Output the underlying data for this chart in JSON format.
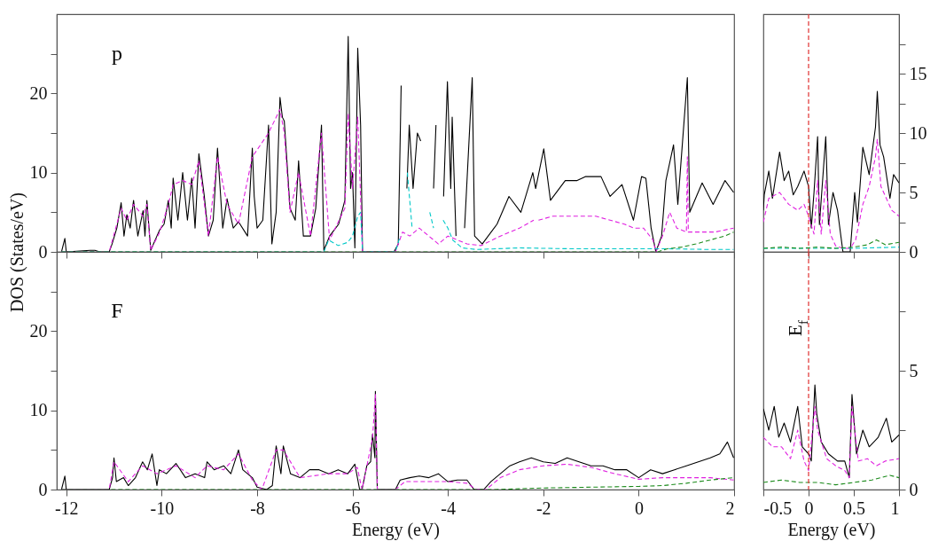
{
  "chart_data": [
    {
      "type": "line",
      "ylabel": "DOS (States/eV)",
      "annotations": [
        "p"
      ],
      "tick_labels": "y",
      "xlim": [
        -12.2,
        2
      ],
      "xticks": [
        -12,
        -10,
        -8,
        -6,
        -4,
        -2,
        0,
        2
      ],
      "ylim": [
        0,
        30
      ],
      "yticks": [
        0,
        {
          "value": 5,
          "label": null
        },
        10,
        {
          "value": 15,
          "label": null
        },
        20,
        {
          "value": 25,
          "label": null
        }
      ],
      "series": [
        {
          "color": "#000000",
          "line_style": "solid",
          "x": [
            -12.1,
            -12.03,
            -12.0,
            -11.5,
            -11.4,
            -11.3,
            -11.1,
            -11.04,
            -10.94,
            -10.85,
            -10.79,
            -10.73,
            -10.66,
            -10.59,
            -10.5,
            -10.39,
            -10.35,
            -10.31,
            -10.23,
            -10.1,
            -10.04,
            -9.95,
            -9.86,
            -9.8,
            -9.76,
            -9.66,
            -9.56,
            -9.46,
            -9.37,
            -9.3,
            -9.22,
            -9.11,
            -9.02,
            -8.92,
            -8.83,
            -8.72,
            -8.63,
            -8.5,
            -8.39,
            -8.2,
            -8.1,
            -8.06,
            -8.0,
            -7.88,
            -7.76,
            -7.69,
            -7.6,
            -7.52,
            -7.47,
            -7.43,
            -7.31,
            -7.2,
            -7.13,
            -7.03,
            -6.88,
            -6.77,
            -6.65,
            -6.6,
            -6.48,
            -6.29,
            -6.16,
            -6.09,
            -6.04,
            -6.0,
            -5.95,
            -5.89,
            -5.83,
            -5.79,
            -5.5,
            -5.13,
            -5.04,
            -4.98,
            -4.9,
            -4.86,
            -4.81,
            -4.73,
            -4.64,
            -4.57,
            -4.49,
            -4.4,
            -4.3,
            -4.25,
            -4.19,
            -4.09,
            -4.01,
            -3.94,
            -3.91,
            -3.83,
            -3.7,
            -3.65,
            -3.49,
            -3.44,
            -3.28,
            -2.97,
            -2.72,
            -2.47,
            -2.22,
            -2.16,
            -1.99,
            -1.85,
            -1.54,
            -1.29,
            -1.12,
            -0.79,
            -0.6,
            -0.35,
            -0.11,
            0.06,
            0.15,
            0.26,
            0.36,
            0.48,
            0.57,
            0.73,
            0.82,
            1.02,
            1.07,
            1.33,
            1.56,
            1.81,
            1.99
          ],
          "values": [
            0,
            1.7,
            0,
            0.2,
            0.2,
            0,
            0,
            1,
            3,
            6.2,
            2,
            4.7,
            3,
            6.5,
            2,
            5.2,
            2,
            6.5,
            0.2,
            2,
            2.8,
            3.5,
            6.5,
            3,
            9.3,
            4,
            10,
            4,
            9.3,
            3,
            12.4,
            7.2,
            2,
            4,
            13.1,
            3,
            6.7,
            3,
            3.8,
            2,
            13.1,
            7,
            3,
            4,
            16,
            1,
            5,
            19.5,
            17,
            16.5,
            5.5,
            4,
            11.5,
            2,
            2,
            5.5,
            16,
            0.2,
            2,
            3.5,
            6.5,
            27.2,
            8,
            10,
            0.5,
            25.7,
            16,
            0,
            0,
            0,
            1,
            21,
            null,
            8,
            16,
            8,
            15,
            14,
            null,
            null,
            8,
            16,
            null,
            7,
            21.5,
            8,
            17,
            2,
            null,
            3,
            22,
            2,
            1,
            3.5,
            7,
            5,
            10,
            8,
            13,
            6.5,
            9,
            9,
            9.5,
            9.5,
            7,
            8.5,
            4,
            9.5,
            9.3,
            3,
            0,
            2,
            9,
            13.5,
            6,
            22,
            5,
            8.7,
            6,
            9,
            7.5
          ]
        },
        {
          "color": "#e020e0",
          "line_style": "dashed",
          "x": [
            -12.1,
            -11.1,
            -10.85,
            -10.73,
            -10.59,
            -10.39,
            -10.31,
            -10.23,
            -10.04,
            -9.86,
            -9.76,
            -9.56,
            -9.37,
            -9.22,
            -9.02,
            -8.83,
            -8.63,
            -8.39,
            -8.1,
            -7.76,
            -7.52,
            -7.43,
            -7.31,
            -7.13,
            -6.88,
            -6.65,
            -6.48,
            -6.16,
            -6.09,
            -6.0,
            -5.89,
            -5.79,
            -5.5,
            -5.1,
            -4.95,
            -4.8,
            -4.6,
            -4.4,
            -4.2,
            -4.0,
            -3.8,
            -3.6,
            -3.3,
            -2.9,
            -2.5,
            -2.2,
            -2.16,
            -2.1,
            -1.8,
            -1.5,
            -1.2,
            -0.9,
            -0.6,
            -0.3,
            -0.1,
            0.1,
            0.3,
            0.36,
            0.5,
            0.65,
            0.8,
            1.0,
            1.02,
            1.04,
            1.3,
            1.6,
            1.99
          ],
          "values": [
            0,
            0,
            5.5,
            4,
            6,
            4.5,
            6,
            0.2,
            2.5,
            6,
            8.5,
            9,
            8.5,
            11.5,
            2,
            12,
            6,
            3.5,
            12,
            15,
            18,
            15,
            5,
            10,
            2,
            15,
            1.5,
            5.5,
            17.5,
            8,
            17,
            0,
            0,
            0,
            2.5,
            2,
            3,
            2,
            1,
            2,
            1.5,
            1,
            0.8,
            2,
            3,
            4,
            null,
            4,
            4.5,
            4.5,
            4.5,
            4.5,
            4,
            3.5,
            3,
            3,
            1.5,
            0,
            2,
            5,
            3,
            2.5,
            12,
            2.5,
            2.5,
            2.5,
            3
          ]
        },
        {
          "color": "#00c8c8",
          "line_style": "dashed",
          "x": [
            -12.1,
            -6.6,
            -6.5,
            -6.3,
            -6.1,
            -6.0,
            -5.89,
            -5.83,
            -5.79,
            -5.5,
            -5.1,
            -5.0,
            -4.9,
            -4.85,
            -4.75,
            -4.6,
            -4.52,
            -4.45,
            -4.38,
            -4.3,
            -4.19,
            -4.1,
            -4.0,
            -3.9,
            -3.7,
            -3.4,
            -2.5,
            -1.5,
            -0.5,
            0.5,
            1.5,
            1.99
          ],
          "values": [
            0,
            0,
            1.5,
            0.8,
            1.2,
            2,
            4.5,
            5,
            0,
            0,
            0,
            2,
            null,
            10,
            3,
            null,
            null,
            null,
            5,
            3,
            null,
            4,
            3,
            1.5,
            0.5,
            0.3,
            0.5,
            0.4,
            0.4,
            0.4,
            0.3,
            0.3
          ]
        },
        {
          "color": "#1a8a1a",
          "line_style": "dashed",
          "x": [
            -12.1,
            0.4,
            0.6,
            0.9,
            1.2,
            1.5,
            1.8,
            1.99
          ],
          "values": [
            0,
            0,
            0.4,
            0.6,
            1,
            1.5,
            2,
            2.5
          ]
        }
      ]
    },
    {
      "type": "line",
      "tick_labels": "y",
      "xlim": [
        -0.5,
        1
      ],
      "xticks": [
        -0.5,
        0,
        0.5,
        1
      ],
      "y2lim": [
        0,
        20
      ],
      "y2ticks": [
        0,
        {
          "value": 2.5,
          "label": null
        },
        5,
        {
          "value": 7.5,
          "label": null
        },
        10,
        {
          "value": 12.5,
          "label": null
        },
        15,
        {
          "value": 17.5,
          "label": null
        }
      ],
      "ref_lines": [
        {
          "axis": "x",
          "value": 0,
          "color": "#e03030",
          "line_style": "dashed"
        }
      ],
      "series": [
        {
          "axis": "y2",
          "color": "#000000",
          "line_style": "solid",
          "x": [
            -0.5,
            -0.49,
            -0.44,
            -0.4,
            -0.32,
            -0.27,
            -0.22,
            -0.17,
            -0.12,
            -0.05,
            0,
            0.03,
            0.06,
            0.1,
            0.12,
            0.19,
            0.22,
            0.27,
            0.32,
            0.38,
            0.46,
            0.51,
            0.54,
            0.6,
            0.67,
            0.74,
            0.76,
            0.79,
            0.83,
            0.9,
            0.94,
            1.0
          ],
          "values": [
            3.5,
            4.8,
            6.8,
            4.5,
            8.4,
            6,
            6.8,
            4.8,
            5.5,
            6.8,
            5.5,
            2,
            5,
            9.7,
            2.3,
            9.7,
            2.3,
            5,
            3.5,
            0,
            0,
            5,
            2.5,
            8.8,
            6.5,
            10.5,
            13.5,
            9,
            8,
            4.5,
            6.5,
            5.8
          ]
        },
        {
          "axis": "y2",
          "color": "#e020e0",
          "line_style": "dashed",
          "x": [
            -0.5,
            -0.44,
            -0.32,
            -0.22,
            -0.12,
            -0.05,
            0,
            0.06,
            0.1,
            0.14,
            0.19,
            0.24,
            0.3,
            0.38,
            0.46,
            0.52,
            0.6,
            0.67,
            0.74,
            0.76,
            0.8,
            0.86,
            0.92,
            1.0
          ],
          "values": [
            2.5,
            4.5,
            5,
            4,
            3.5,
            4,
            3,
            1.5,
            6,
            1.5,
            6,
            1.5,
            0.5,
            0.3,
            0.3,
            1,
            4,
            5.5,
            8,
            9.5,
            5.5,
            4.5,
            3.5,
            3
          ]
        },
        {
          "axis": "y2",
          "color": "#00c8c8",
          "line_style": "dashed",
          "x": [
            -0.5,
            0,
            0.5,
            1.0
          ],
          "values": [
            0.3,
            0.3,
            0.3,
            0.4
          ]
        },
        {
          "axis": "y2",
          "color": "#1a8a1a",
          "line_style": "dashed",
          "x": [
            -0.5,
            -0.3,
            -0.1,
            0.1,
            0.3,
            0.5,
            0.65,
            0.75,
            0.85,
            1.0
          ],
          "values": [
            0.3,
            0.4,
            0.3,
            0.4,
            0.3,
            0.4,
            0.6,
            1,
            0.6,
            0.8
          ]
        }
      ]
    },
    {
      "type": "line",
      "xlabel": "Energy (eV)",
      "annotations": [
        "F"
      ],
      "xlim": [
        -12.2,
        2
      ],
      "xticks": [
        -12,
        -10,
        -8,
        -6,
        -4,
        -2,
        0,
        2
      ],
      "ylim": [
        0,
        30
      ],
      "yticks": [
        0,
        {
          "value": 5,
          "label": null
        },
        10,
        {
          "value": 15,
          "label": null
        },
        20,
        {
          "value": 25,
          "label": null
        }
      ],
      "series": [
        {
          "color": "#000000",
          "line_style": "solid",
          "x": [
            -12.1,
            -12.03,
            -12.0,
            -11.1,
            -11.03,
            -11.0,
            -10.95,
            -10.8,
            -10.7,
            -10.55,
            -10.4,
            -10.3,
            -10.2,
            -10.1,
            -10.05,
            -9.9,
            -9.7,
            -9.5,
            -9.3,
            -9.1,
            -9.05,
            -8.9,
            -8.7,
            -8.55,
            -8.39,
            -8.3,
            -8.1,
            -8.0,
            -7.8,
            -7.68,
            -7.6,
            -7.5,
            -7.45,
            -7.3,
            -7.1,
            -6.9,
            -6.7,
            -6.5,
            -6.3,
            -6.1,
            -5.95,
            -5.85,
            -5.8,
            -5.7,
            -5.62,
            -5.58,
            -5.53,
            -5.52,
            -5.48,
            -5.1,
            -5.0,
            -4.8,
            -4.6,
            -4.4,
            -4.2,
            -4.0,
            -3.8,
            -3.6,
            -3.45,
            -3.25,
            -3.1,
            -2.9,
            -2.7,
            -2.5,
            -2.25,
            -2.0,
            -1.75,
            -1.5,
            -1.25,
            -1.0,
            -0.75,
            -0.5,
            -0.25,
            0,
            0.25,
            0.5,
            0.75,
            1.0,
            1.25,
            1.5,
            1.7,
            1.86,
            1.99
          ],
          "values": [
            0,
            1.7,
            0,
            0,
            1.5,
            4,
            1,
            1.5,
            0.5,
            1.5,
            3.5,
            2.5,
            4.5,
            0.5,
            2.5,
            2,
            3.3,
            1.5,
            2,
            1.5,
            3.5,
            2.5,
            3,
            2,
            5,
            2.5,
            1.5,
            0.3,
            0,
            0.5,
            5.5,
            2,
            5.5,
            2,
            1.5,
            2.5,
            2.5,
            2,
            2.5,
            2,
            3.2,
            0,
            0,
            3,
            3.5,
            7,
            4,
            12.4,
            0,
            0,
            1.2,
            1.5,
            1.7,
            1.5,
            2,
            1,
            1.2,
            1.2,
            0,
            0,
            1,
            2,
            3,
            3.5,
            4,
            3.5,
            3.3,
            4,
            3.5,
            3,
            3,
            2.5,
            2.5,
            1.5,
            2.5,
            2,
            2.5,
            3,
            3.5,
            4,
            4.5,
            6,
            4
          ]
        },
        {
          "color": "#e020e0",
          "line_style": "dashed",
          "x": [
            -12.1,
            -11.1,
            -11.0,
            -10.7,
            -10.4,
            -10.1,
            -9.7,
            -9.3,
            -9.05,
            -8.7,
            -8.39,
            -8.1,
            -7.9,
            -7.6,
            -7.45,
            -7.1,
            -6.5,
            -6.1,
            -5.9,
            -5.8,
            -5.58,
            -5.52,
            -5.48,
            -5.1,
            -4.9,
            -4.5,
            -4.0,
            -3.6,
            -3.4,
            -3.2,
            -2.9,
            -2.5,
            -2.0,
            -1.5,
            -1.0,
            -0.5,
            0,
            0.5,
            1.0,
            1.5,
            1.99
          ],
          "values": [
            0,
            0,
            3.5,
            1,
            3,
            2,
            3,
            1.5,
            3,
            2.5,
            4.5,
            1.2,
            0,
            5,
            5,
            1.5,
            2,
            2,
            2.8,
            0,
            6.5,
            12,
            0,
            0,
            1,
            1,
            1,
            0.8,
            0,
            0,
            1.5,
            2.5,
            3,
            3.2,
            2.8,
            2,
            1.3,
            1.5,
            1.5,
            1.5,
            1.2
          ]
        },
        {
          "color": "#1a8a1a",
          "line_style": "dashed",
          "x": [
            -12.1,
            -3.0,
            -2.0,
            -1.0,
            0,
            0.5,
            1.0,
            1.5,
            1.99
          ],
          "values": [
            0,
            0,
            0.2,
            0.3,
            0.4,
            0.5,
            0.8,
            1.2,
            1.5
          ]
        }
      ]
    },
    {
      "type": "line",
      "xlabel": "Energy (eV)",
      "xlim": [
        -0.5,
        1
      ],
      "xticks": [
        -0.5,
        0,
        0.5,
        1
      ],
      "y2lim": [
        0,
        10
      ],
      "y2ticks": [
        0,
        {
          "value": 2.5,
          "label": null
        },
        5,
        {
          "value": 7.5,
          "label": null
        }
      ],
      "ref_lines": [
        {
          "axis": "x",
          "value": 0,
          "color": "#e03030",
          "line_style": "dashed",
          "label": "E$_{f}$"
        }
      ],
      "series": [
        {
          "axis": "y2",
          "color": "#000000",
          "line_style": "solid",
          "x": [
            -0.5,
            -0.44,
            -0.38,
            -0.33,
            -0.27,
            -0.2,
            -0.12,
            -0.07,
            0,
            0.03,
            0.07,
            0.09,
            0.14,
            0.22,
            0.32,
            0.4,
            0.45,
            0.48,
            0.53,
            0.6,
            0.67,
            0.77,
            0.86,
            0.92,
            1.0
          ],
          "values": [
            3.4,
            2.5,
            3.5,
            2.2,
            2.8,
            2,
            3.5,
            1.8,
            1.5,
            1.2,
            4.4,
            3.2,
            2,
            1.5,
            1.2,
            1.2,
            0.5,
            4,
            1.5,
            2.5,
            1.8,
            2.2,
            3,
            2,
            2.3
          ]
        },
        {
          "axis": "y2",
          "color": "#e020e0",
          "line_style": "dashed",
          "x": [
            -0.5,
            -0.4,
            -0.3,
            -0.2,
            -0.12,
            -0.05,
            0,
            0.07,
            0.1,
            0.2,
            0.3,
            0.4,
            0.45,
            0.48,
            0.55,
            0.65,
            0.75,
            0.85,
            1.0
          ],
          "values": [
            2.2,
            1.8,
            1.8,
            1.3,
            2.5,
            1.2,
            0.8,
            3.5,
            2.5,
            1.3,
            1,
            0.8,
            0.5,
            3.5,
            1.2,
            1.3,
            1,
            1.2,
            1.3
          ]
        },
        {
          "axis": "y2",
          "color": "#1a8a1a",
          "line_style": "dashed",
          "x": [
            -0.5,
            -0.3,
            -0.1,
            0.1,
            0.3,
            0.5,
            0.7,
            0.9,
            1.0
          ],
          "values": [
            0.3,
            0.4,
            0.3,
            0.3,
            0.2,
            0.3,
            0.4,
            0.6,
            0.5
          ]
        }
      ]
    }
  ]
}
